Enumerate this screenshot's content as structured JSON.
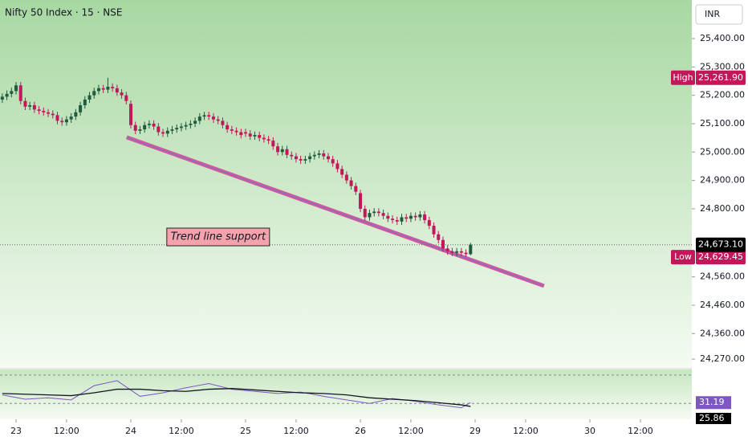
{
  "chart_data": {
    "type": "candlestick",
    "title": "Nifty 50 Index · 15 · NSE",
    "currency": "INR",
    "x": [
      -3,
      -2,
      -1,
      0,
      1,
      2,
      3,
      4,
      5,
      6,
      7,
      8,
      9,
      10,
      11,
      12,
      13,
      14,
      15,
      16,
      17,
      18,
      19,
      20,
      21,
      22,
      23,
      24,
      25,
      26,
      27,
      28,
      29,
      30,
      31,
      32,
      33,
      34,
      35,
      36,
      37,
      38,
      39,
      40,
      41,
      42,
      43,
      44,
      45,
      46,
      47,
      48,
      49,
      50,
      51,
      52,
      53,
      54,
      55,
      56,
      57,
      58,
      59,
      60,
      61,
      62,
      63,
      64,
      65,
      66,
      67,
      68,
      69,
      70,
      71,
      72,
      73,
      74,
      75,
      76,
      77,
      78,
      79,
      80,
      81,
      82,
      83,
      84,
      85,
      86,
      87,
      88,
      89,
      90,
      91,
      92,
      93,
      94,
      95,
      96,
      97,
      98,
      99
    ],
    "open": [
      25185,
      25195,
      25205,
      25215,
      25235,
      25180,
      25160,
      25165,
      25150,
      25145,
      25140,
      25135,
      25130,
      25110,
      25105,
      25115,
      25125,
      25140,
      25165,
      25185,
      25200,
      25215,
      25225,
      25220,
      25230,
      25225,
      25210,
      25200,
      25170,
      25095,
      25075,
      25080,
      25095,
      25100,
      25090,
      25070,
      25065,
      25075,
      25080,
      25085,
      25090,
      25095,
      25100,
      25110,
      25125,
      25130,
      25125,
      25115,
      25110,
      25095,
      25080,
      25075,
      25070,
      25070,
      25065,
      25055,
      25060,
      25050,
      25045,
      25040,
      25020,
      25000,
      25010,
      24990,
      24985,
      24975,
      24970,
      24975,
      24985,
      24990,
      24995,
      24985,
      24975,
      24960,
      24940,
      24920,
      24900,
      24880,
      24855,
      24800,
      24770,
      24785,
      24790,
      24785,
      24775,
      24765,
      24760,
      24755,
      24770,
      24765,
      24775,
      24770,
      24780,
      24760,
      24740,
      24710,
      24690,
      24660,
      24650,
      24645,
      24650,
      24645,
      24640
    ],
    "high": [
      25207,
      25217,
      25227,
      25247,
      25247,
      25192,
      25177,
      25177,
      25162,
      25157,
      25152,
      25147,
      25142,
      25122,
      25127,
      25137,
      25152,
      25177,
      25197,
      25212,
      25227,
      25237,
      25237,
      25261.9,
      25242,
      25237,
      25222,
      25212,
      25182,
      25107,
      25092,
      25107,
      25112,
      25112,
      25102,
      25082,
      25087,
      25092,
      25097,
      25102,
      25107,
      25112,
      25122,
      25137,
      25142,
      25142,
      25137,
      25127,
      25122,
      25107,
      25092,
      25087,
      25082,
      25082,
      25077,
      25072,
      25072,
      25062,
      25057,
      25052,
      25032,
      25022,
      25022,
      25002,
      24997,
      24987,
      24987,
      24997,
      25002,
      25007,
      25007,
      24997,
      24987,
      24972,
      24952,
      24932,
      24912,
      24892,
      24867,
      24812,
      24797,
      24802,
      24802,
      24797,
      24787,
      24777,
      24772,
      24782,
      24782,
      24787,
      24787,
      24792,
      24792,
      24772,
      24752,
      24722,
      24702,
      24672,
      24662,
      24662,
      24662,
      24657,
      24680
    ],
    "low": [
      25173,
      25183,
      25193,
      25203,
      25168,
      25148,
      25148,
      25138,
      25133,
      25128,
      25123,
      25118,
      25098,
      25093,
      25093,
      25103,
      25113,
      25128,
      25153,
      25173,
      25188,
      25203,
      25208,
      25208,
      25213,
      25198,
      25188,
      25168,
      25083,
      25063,
      25063,
      25068,
      25083,
      25078,
      25058,
      25053,
      25053,
      25063,
      25068,
      25073,
      25078,
      25083,
      25088,
      25098,
      25113,
      25113,
      25103,
      25098,
      25083,
      25068,
      25063,
      25058,
      25048,
      25053,
      25043,
      25043,
      25038,
      25033,
      25028,
      25008,
      24988,
      24988,
      24978,
      24973,
      24963,
      24958,
      24958,
      24963,
      24973,
      24978,
      24973,
      24963,
      24948,
      24928,
      24908,
      24888,
      24868,
      24848,
      24788,
      24758,
      24758,
      24773,
      24773,
      24763,
      24753,
      24748,
      24743,
      24743,
      24753,
      24753,
      24758,
      24758,
      24748,
      24728,
      24698,
      24678,
      24648,
      24638,
      24633,
      24633,
      24633,
      24629.45,
      24636
    ],
    "close": [
      25195,
      25205,
      25215,
      25235,
      25180,
      25160,
      25165,
      25150,
      25145,
      25140,
      25135,
      25130,
      25110,
      25105,
      25115,
      25125,
      25140,
      25165,
      25185,
      25200,
      25215,
      25225,
      25220,
      25230,
      25225,
      25210,
      25200,
      25180,
      25095,
      25075,
      25080,
      25095,
      25100,
      25090,
      25070,
      25065,
      25075,
      25080,
      25085,
      25090,
      25095,
      25100,
      25110,
      25125,
      25130,
      25125,
      25115,
      25110,
      25095,
      25080,
      25075,
      25070,
      25060,
      25065,
      25055,
      25060,
      25050,
      25045,
      25040,
      25020,
      25000,
      25010,
      24990,
      24985,
      24975,
      24970,
      24975,
      24985,
      24990,
      24995,
      24985,
      24975,
      24960,
      24940,
      24920,
      24900,
      24880,
      24860,
      24800,
      24770,
      24785,
      24790,
      24785,
      24775,
      24765,
      24760,
      24755,
      24770,
      24765,
      24775,
      24770,
      24780,
      24760,
      24740,
      24710,
      24690,
      24660,
      24650,
      24645,
      24650,
      24645,
      24640,
      24673.1
    ],
    "up_color": "#1e5b3f",
    "down_color": "#c2185b",
    "xlim": [
      -3.5,
      147.2
    ],
    "xticks": [
      {
        "value": 0,
        "label": "23"
      },
      {
        "value": 11,
        "label": "12:00"
      },
      {
        "value": 25,
        "label": "24"
      },
      {
        "value": 36,
        "label": "12:00"
      },
      {
        "value": 50,
        "label": "25"
      },
      {
        "value": 61,
        "label": "12:00"
      },
      {
        "value": 75,
        "label": "26"
      },
      {
        "value": 86,
        "label": "12:00"
      },
      {
        "value": 100,
        "label": "29"
      },
      {
        "value": 111,
        "label": "12:00"
      },
      {
        "value": 125,
        "label": "30"
      },
      {
        "value": 136,
        "label": "12:00"
      }
    ],
    "ylim": [
      24239,
      25536
    ],
    "yticks": [
      {
        "value": 25400,
        "label": "25,400.00"
      },
      {
        "value": 25300,
        "label": "25,300.00"
      },
      {
        "value": 25200,
        "label": "25,200.00"
      },
      {
        "value": 25100,
        "label": "25,100.00"
      },
      {
        "value": 25000,
        "label": "25,000.00"
      },
      {
        "value": 24900,
        "label": "24,900.00"
      },
      {
        "value": 24800,
        "label": "24,800.00"
      },
      {
        "value": 24560,
        "label": "24,560.00"
      },
      {
        "value": 24460,
        "label": "24,460.00"
      },
      {
        "value": 24360,
        "label": "24,360.00"
      },
      {
        "value": 24270,
        "label": "24,270.00"
      }
    ],
    "high_marker": {
      "tag": "High",
      "value": 25261.9,
      "label": "25,261.90"
    },
    "low_marker": {
      "tag": "Low",
      "value": 24629.45,
      "label": "24,629.45"
    },
    "last_price": {
      "value": 24673.1,
      "label": "24,673.10"
    },
    "trend_line": {
      "x": [
        24.1,
        115
      ],
      "y": [
        25052,
        24528
      ],
      "color": "#d05a9a",
      "annotation": "Trend line support"
    },
    "rsi": {
      "ylim": [
        10,
        80
      ],
      "bands": [
        30,
        70
      ],
      "x": [
        -3,
        2,
        7,
        12,
        17,
        22,
        27,
        32,
        37,
        42,
        47,
        52,
        57,
        62,
        67,
        72,
        77,
        82,
        87,
        92,
        97,
        99
      ],
      "values": [
        42,
        36,
        38,
        35,
        55,
        62,
        40,
        45,
        52,
        58,
        50,
        47,
        44,
        46,
        40,
        35,
        30,
        37,
        33,
        28,
        24,
        31.19
      ],
      "ma": [
        44,
        43,
        42,
        41,
        45,
        50,
        50,
        48,
        47,
        50,
        51,
        49,
        47,
        45,
        44,
        42,
        38,
        36,
        34,
        31,
        28,
        25.86
      ],
      "color": "#7e57c2",
      "ma_color": "#131722"
    }
  }
}
